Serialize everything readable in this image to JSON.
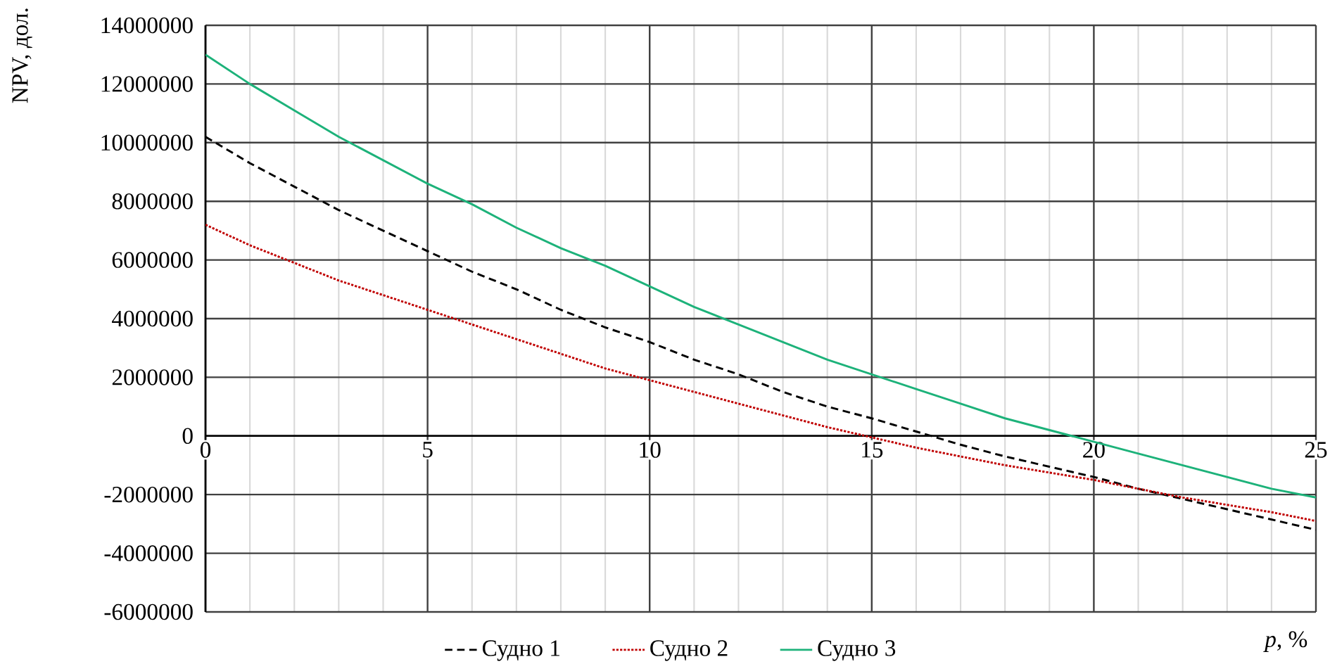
{
  "chart_data": {
    "type": "line",
    "xlabel": "*p*, %",
    "ylabel": "NPV, дол.",
    "x": [
      0,
      1,
      2,
      3,
      4,
      5,
      6,
      7,
      8,
      9,
      10,
      11,
      12,
      13,
      14,
      15,
      16,
      17,
      18,
      19,
      20,
      21,
      22,
      23,
      24,
      25
    ],
    "series": [
      {
        "name": "Судно 1",
        "color": "#000000",
        "line_style": "dashed",
        "values": [
          10200000.0,
          9300000.0,
          8500000.0,
          7700000.0,
          7000000.0,
          6300000.0,
          5600000.0,
          5000000.0,
          4300000.0,
          3700000.0,
          3200000.0,
          2600000.0,
          2100000.0,
          1500000.0,
          1000000.0,
          600000.0,
          150000.0,
          -300000.0,
          -700000.0,
          -1050000.0,
          -1400000.0,
          -1800000.0,
          -2150000.0,
          -2500000.0,
          -2850000.0,
          -3200000.0
        ]
      },
      {
        "name": "Судно 2",
        "color": "#c00000",
        "line_style": "dotted",
        "values": [
          7200000.0,
          6500000.0,
          5900000.0,
          5300000.0,
          4800000.0,
          4300000.0,
          3800000.0,
          3300000.0,
          2800000.0,
          2300000.0,
          1900000.0,
          1500000.0,
          1100000.0,
          700000.0,
          300000.0,
          -50000.0,
          -400000.0,
          -700000.0,
          -1000000.0,
          -1250000.0,
          -1500000.0,
          -1800000.0,
          -2100000.0,
          -2350000.0,
          -2600000.0,
          -2900000.0
        ]
      },
      {
        "name": "Судно 3",
        "color": "#1db27a",
        "line_style": "solid",
        "values": [
          13000000.0,
          12000000.0,
          11100000.0,
          10200000.0,
          9400000.0,
          8600000.0,
          7900000.0,
          7100000.0,
          6400000.0,
          5800000.0,
          5100000.0,
          4400000.0,
          3800000.0,
          3200000.0,
          2600000.0,
          2100000.0,
          1600000.0,
          1100000.0,
          600000.0,
          200000.0,
          -200000.0,
          -600000.0,
          -1000000.0,
          -1400000.0,
          -1800000.0,
          -2100000.0
        ]
      }
    ],
    "xlim": [
      0,
      25
    ],
    "xticks": [
      0,
      5,
      10,
      15,
      20,
      25
    ],
    "ylim": [
      -6000000,
      14000000
    ],
    "yticks": [
      -6000000,
      -4000000,
      -2000000,
      0,
      2000000,
      4000000,
      6000000,
      8000000,
      10000000,
      12000000,
      14000000
    ],
    "grid": true,
    "legend": "bottom",
    "marker": "none"
  }
}
